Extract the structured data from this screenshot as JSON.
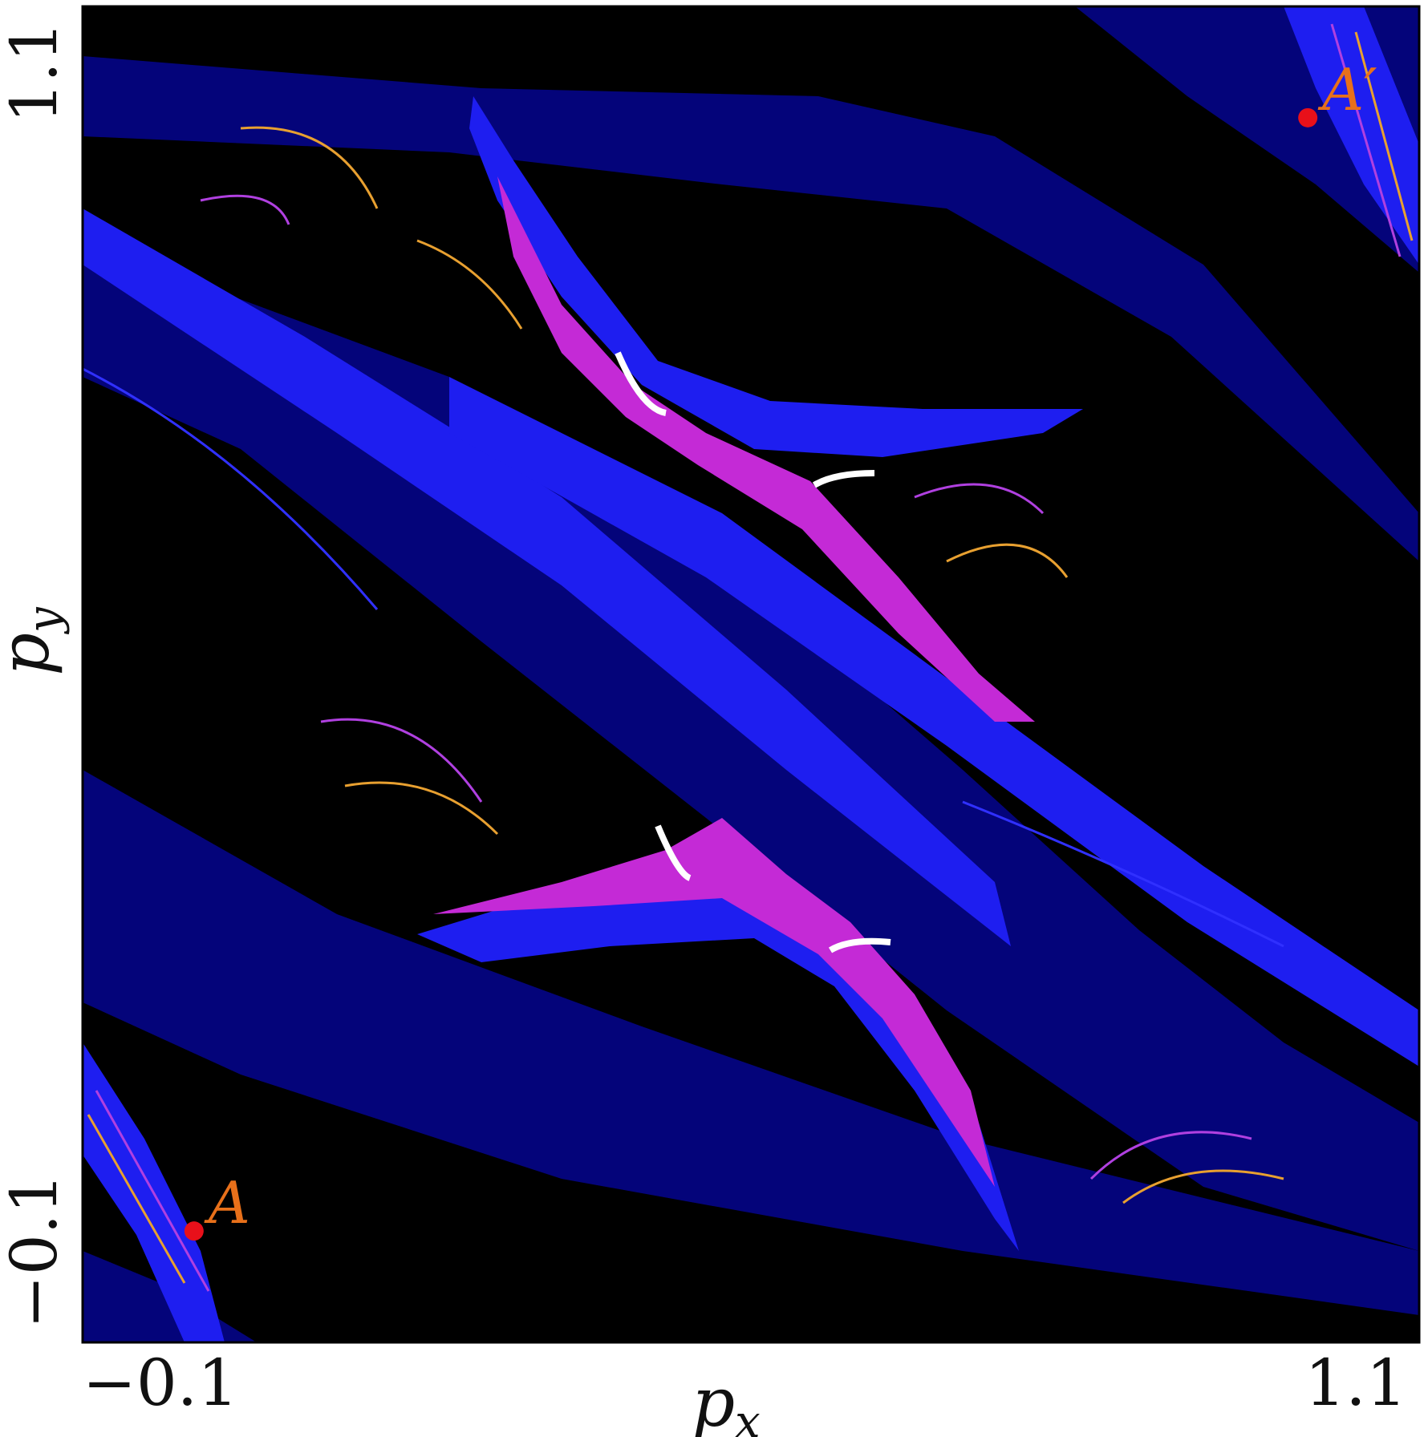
{
  "chart_data": {
    "type": "heatmap",
    "title": "",
    "xlabel": {
      "base": "p",
      "sub": "x"
    },
    "ylabel": {
      "base": "p",
      "sub": "y"
    },
    "xlim": [
      -0.1,
      1.1
    ],
    "ylim": [
      -0.1,
      1.1
    ],
    "x_ticks": [
      {
        "value": -0.1,
        "label": "−0.1"
      },
      {
        "value": 1.1,
        "label": "1.1"
      }
    ],
    "y_ticks": [
      {
        "value": -0.1,
        "label": "−0.1"
      },
      {
        "value": 1.1,
        "label": "1.1"
      }
    ],
    "grid": false,
    "legend": "none",
    "colors": {
      "background": "#000000",
      "dark_blue": "#04047a",
      "blue": "#1e1ef0",
      "magenta": "#c42ad6",
      "white": "#ffffff",
      "orange": "#e8a030",
      "marker": "#e8101a",
      "label": "#e8701a"
    },
    "points": [
      {
        "label": "A",
        "x": -0.0,
        "y": -0.0
      },
      {
        "label": "A′",
        "x": 1.0,
        "y": 1.0
      }
    ]
  }
}
